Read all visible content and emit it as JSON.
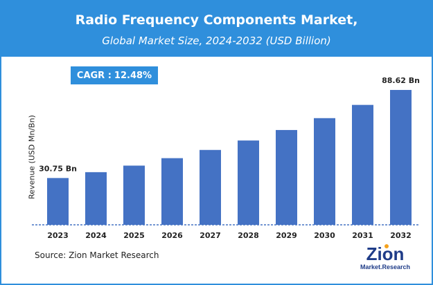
{
  "chart_data": {
    "type": "bar",
    "title": "Radio Frequency Components Market,",
    "subtitle": "Global Market Size, 2024-2032 (USD Billion)",
    "ylabel": "Revenue (USD Mn/Bn)",
    "xlabel": "",
    "categories": [
      "2023",
      "2024",
      "2025",
      "2026",
      "2027",
      "2028",
      "2029",
      "2030",
      "2031",
      "2032"
    ],
    "values": [
      30.75,
      34.6,
      38.9,
      43.8,
      49.2,
      55.4,
      62.3,
      70.1,
      78.8,
      88.62
    ],
    "data_labels": [
      {
        "index": 0,
        "text": "30.75 Bn"
      },
      {
        "index": 9,
        "text": "88.62 Bn"
      }
    ],
    "ylim": [
      0,
      100
    ],
    "grid": false,
    "bar_color": "#4472c4",
    "baseline_color": "#4472c4"
  },
  "cagr": {
    "label": "CAGR :",
    "value": "12.48%"
  },
  "source": "Source: Zion Market Research",
  "logo": {
    "brand": "Zion",
    "tagline": "Market.Research"
  },
  "colors": {
    "header": "#2f8fdc",
    "bar": "#4472c4",
    "logo_dark": "#1f3c88",
    "logo_accent": "#f4a11d"
  }
}
